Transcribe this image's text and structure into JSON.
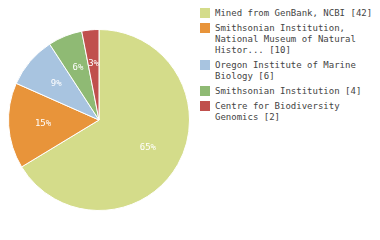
{
  "chart_data": {
    "type": "pie",
    "categories": [
      "Mined from GenBank, NCBI [42]",
      "Smithsonian Institution,\nNational Museum of Natural\nHistor... [10]",
      "Oregon Institute of Marine\nBiology [6]",
      "Smithsonian Institution [4]",
      "Centre for Biodiversity\nGenomics [2]"
    ],
    "values": [
      65,
      15,
      9,
      6,
      3
    ],
    "value_labels": [
      "65%",
      "15%",
      "9%",
      "6%",
      "3%"
    ],
    "colors": [
      "#d4dc8a",
      "#e8943a",
      "#a8c4e0",
      "#8fba74",
      "#c0504d"
    ],
    "data_labels": true,
    "legend": "right"
  }
}
